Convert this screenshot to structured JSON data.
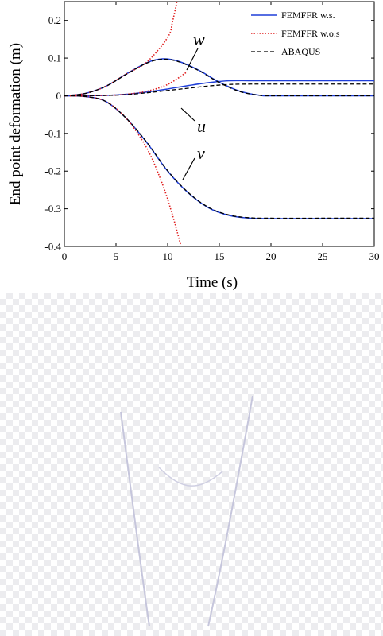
{
  "chart_data": {
    "type": "line",
    "xlabel": "Time (s)",
    "ylabel": "End point deformation (m)",
    "xlim": [
      0,
      30
    ],
    "ylim": [
      -0.4,
      0.25
    ],
    "x_ticks": [
      0,
      5,
      10,
      15,
      20,
      25,
      30
    ],
    "y_ticks": [
      0.2,
      0.1,
      0,
      -0.1,
      -0.2,
      -0.3,
      -0.4
    ],
    "x_tick_labels": [
      "0",
      "5",
      "10",
      "15",
      "20",
      "25",
      "30"
    ],
    "y_tick_labels": [
      "0.2",
      "0.1",
      "0",
      "-0.1",
      "-0.2",
      "-0.3",
      "-0.4"
    ],
    "grid": false,
    "legend_position": "top-right",
    "legend": [
      {
        "label": "FEMFFR w.s.",
        "color": "#1f3fd9",
        "style": "solid"
      },
      {
        "label": "FEMFFR w.o.s",
        "color": "#e02020",
        "style": "dotted"
      },
      {
        "label": "ABAQUS",
        "color": "#000000",
        "style": "dashed"
      }
    ],
    "curve_labels": [
      {
        "text": "w",
        "series": "w"
      },
      {
        "text": "u",
        "series": "u"
      },
      {
        "text": "v",
        "series": "v"
      }
    ],
    "series": [
      {
        "method": "FEMFFR w.s.",
        "component": "w",
        "x": [
          0,
          2,
          4,
          6,
          8,
          9.5,
          11,
          13,
          15,
          17,
          19,
          20,
          25,
          30
        ],
        "y": [
          0,
          0.006,
          0.025,
          0.058,
          0.088,
          0.098,
          0.092,
          0.068,
          0.036,
          0.012,
          0.001,
          0,
          0,
          0
        ]
      },
      {
        "method": "FEMFFR w.s.",
        "component": "u",
        "x": [
          0,
          4,
          6,
          8,
          10,
          12,
          14,
          16,
          18,
          20,
          25,
          30
        ],
        "y": [
          0,
          0.001,
          0.004,
          0.01,
          0.018,
          0.027,
          0.035,
          0.04,
          0.04,
          0.04,
          0.04,
          0.04
        ]
      },
      {
        "method": "FEMFFR w.s.",
        "component": "v",
        "x": [
          0,
          2,
          4,
          6,
          8,
          10,
          12,
          14,
          16,
          18,
          20,
          25,
          30
        ],
        "y": [
          0,
          -0.002,
          -0.015,
          -0.06,
          -0.125,
          -0.2,
          -0.258,
          -0.298,
          -0.318,
          -0.325,
          -0.326,
          -0.326,
          -0.326
        ]
      },
      {
        "method": "FEMFFR w.o.s",
        "component": "w",
        "x": [
          0,
          2,
          4,
          6,
          8,
          10,
          10.5,
          11.2
        ],
        "y": [
          0,
          0.006,
          0.025,
          0.058,
          0.09,
          0.155,
          0.2,
          0.29
        ]
      },
      {
        "method": "FEMFFR w.o.s",
        "component": "u",
        "x": [
          0,
          4,
          6,
          8,
          10,
          11.8
        ],
        "y": [
          0,
          0.001,
          0.004,
          0.012,
          0.03,
          0.062
        ]
      },
      {
        "method": "FEMFFR w.o.s",
        "component": "v",
        "x": [
          0,
          2,
          4,
          6,
          8,
          9.5,
          10.5,
          11.3
        ],
        "y": [
          0,
          -0.002,
          -0.015,
          -0.06,
          -0.14,
          -0.235,
          -0.32,
          -0.4
        ]
      },
      {
        "method": "ABAQUS",
        "component": "w",
        "x": [
          0,
          2,
          4,
          6,
          8,
          9.5,
          11,
          13,
          15,
          17,
          19,
          20,
          25,
          30
        ],
        "y": [
          0,
          0.006,
          0.025,
          0.057,
          0.087,
          0.097,
          0.091,
          0.067,
          0.035,
          0.011,
          0.001,
          0,
          0,
          0
        ]
      },
      {
        "method": "ABAQUS",
        "component": "u",
        "x": [
          0,
          4,
          6,
          8,
          10,
          12,
          14,
          16,
          18,
          20,
          25,
          30
        ],
        "y": [
          0,
          0.001,
          0.003,
          0.008,
          0.014,
          0.02,
          0.026,
          0.03,
          0.031,
          0.031,
          0.031,
          0.031
        ]
      },
      {
        "method": "ABAQUS",
        "component": "v",
        "x": [
          0,
          2,
          4,
          6,
          8,
          10,
          12,
          14,
          16,
          18,
          20,
          25,
          30
        ],
        "y": [
          0,
          -0.002,
          -0.015,
          -0.06,
          -0.124,
          -0.199,
          -0.257,
          -0.297,
          -0.317,
          -0.324,
          -0.325,
          -0.325,
          -0.325
        ]
      }
    ]
  }
}
